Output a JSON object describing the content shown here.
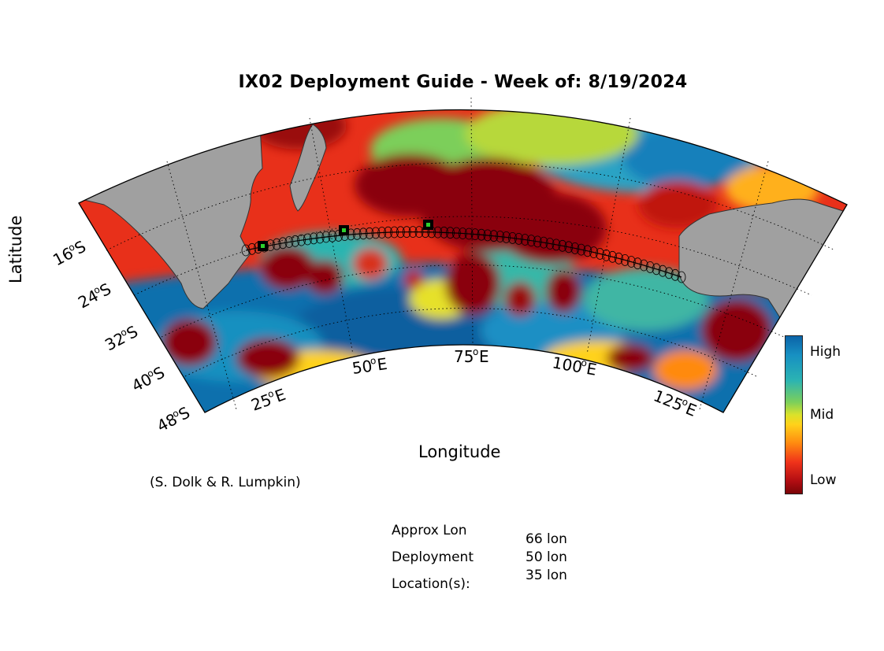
{
  "title": "IX02 Deployment Guide - Week of: 8/19/2024",
  "x_axis_label": "Longitude",
  "y_axis_label": "Latitude",
  "credit": "(S. Dolk & R. Lumpkin)",
  "lat_ticks": [
    {
      "deg": "16",
      "hemi": "S"
    },
    {
      "deg": "24",
      "hemi": "S"
    },
    {
      "deg": "32",
      "hemi": "S"
    },
    {
      "deg": "40",
      "hemi": "S"
    },
    {
      "deg": "48",
      "hemi": "S"
    }
  ],
  "lon_ticks": [
    {
      "deg": "25",
      "hemi": "E"
    },
    {
      "deg": "50",
      "hemi": "E"
    },
    {
      "deg": "75",
      "hemi": "E"
    },
    {
      "deg": "100",
      "hemi": "E"
    },
    {
      "deg": "125",
      "hemi": "E"
    }
  ],
  "colorbar": {
    "high": "High",
    "mid": "Mid",
    "low": "Low"
  },
  "deployment_info": {
    "label_line1": "Approx Lon",
    "label_line2": "Deployment",
    "label_line3": "Location(s):",
    "locations": [
      "66 lon",
      "50 lon",
      "35 lon"
    ]
  },
  "deployment_markers_lon": [
    66,
    50,
    35
  ],
  "colors": {
    "land": "#a0a0a0",
    "high": "#0b63a8",
    "mid": "#ffd21a",
    "low": "#7a0508"
  }
}
